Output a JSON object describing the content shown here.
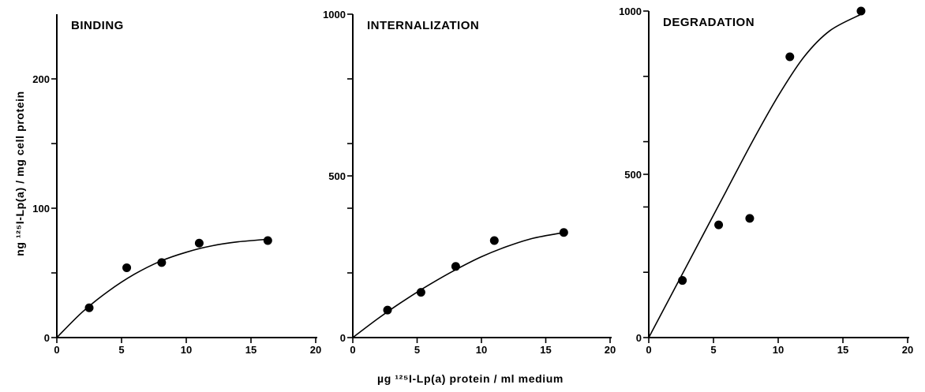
{
  "figure": {
    "ylabel": "ng ¹²⁵I-Lp(a) / mg cell protein",
    "xlabel": "µg ¹²⁵I-Lp(a)  protein / ml medium"
  },
  "chart_data": [
    {
      "type": "scatter",
      "title": "BINDING",
      "xlim": [
        0,
        20
      ],
      "ylim": [
        0,
        250
      ],
      "x_ticks": [
        0,
        5,
        10,
        15,
        20
      ],
      "y_labeled_ticks": [
        0,
        100,
        200
      ],
      "y_minor_ticks": [
        50,
        150
      ],
      "points": {
        "x": [
          2.5,
          5.4,
          8.1,
          11.0,
          16.3
        ],
        "y": [
          23,
          54,
          58,
          73,
          75
        ]
      },
      "fit_curve": {
        "x": [
          0,
          2,
          4,
          6,
          8,
          10,
          12,
          14,
          16.3
        ],
        "y": [
          0,
          20,
          36,
          49,
          59,
          66,
          71,
          74,
          76
        ]
      }
    },
    {
      "type": "scatter",
      "title": "INTERNALIZATION",
      "xlim": [
        0,
        20
      ],
      "ylim": [
        0,
        1000
      ],
      "x_ticks": [
        0,
        5,
        10,
        15,
        20
      ],
      "y_labeled_ticks": [
        0,
        500,
        1000
      ],
      "y_minor_ticks": [
        200,
        400,
        600,
        800
      ],
      "points": {
        "x": [
          2.7,
          5.3,
          8.0,
          11.0,
          16.4
        ],
        "y": [
          85,
          140,
          220,
          300,
          325
        ]
      },
      "fit_curve": {
        "x": [
          0,
          2,
          4,
          6,
          8,
          10,
          12,
          14,
          16.4
        ],
        "y": [
          0,
          60,
          115,
          165,
          210,
          250,
          282,
          307,
          325
        ]
      }
    },
    {
      "type": "scatter",
      "title": "DEGRADATION",
      "xlim": [
        0,
        20
      ],
      "ylim": [
        0,
        1000
      ],
      "x_ticks": [
        0,
        5,
        10,
        15,
        20
      ],
      "y_labeled_ticks": [
        0,
        500,
        1000
      ],
      "y_minor_ticks": [
        200,
        400,
        600,
        800
      ],
      "points": {
        "x": [
          2.6,
          5.4,
          7.8,
          10.9,
          16.4
        ],
        "y": [
          175,
          345,
          365,
          860,
          1000
        ]
      },
      "fit_curve": {
        "x": [
          0,
          2,
          4,
          6,
          8,
          10,
          12,
          14,
          16.4
        ],
        "y": [
          0,
          150,
          300,
          450,
          600,
          740,
          860,
          940,
          990
        ]
      }
    }
  ]
}
